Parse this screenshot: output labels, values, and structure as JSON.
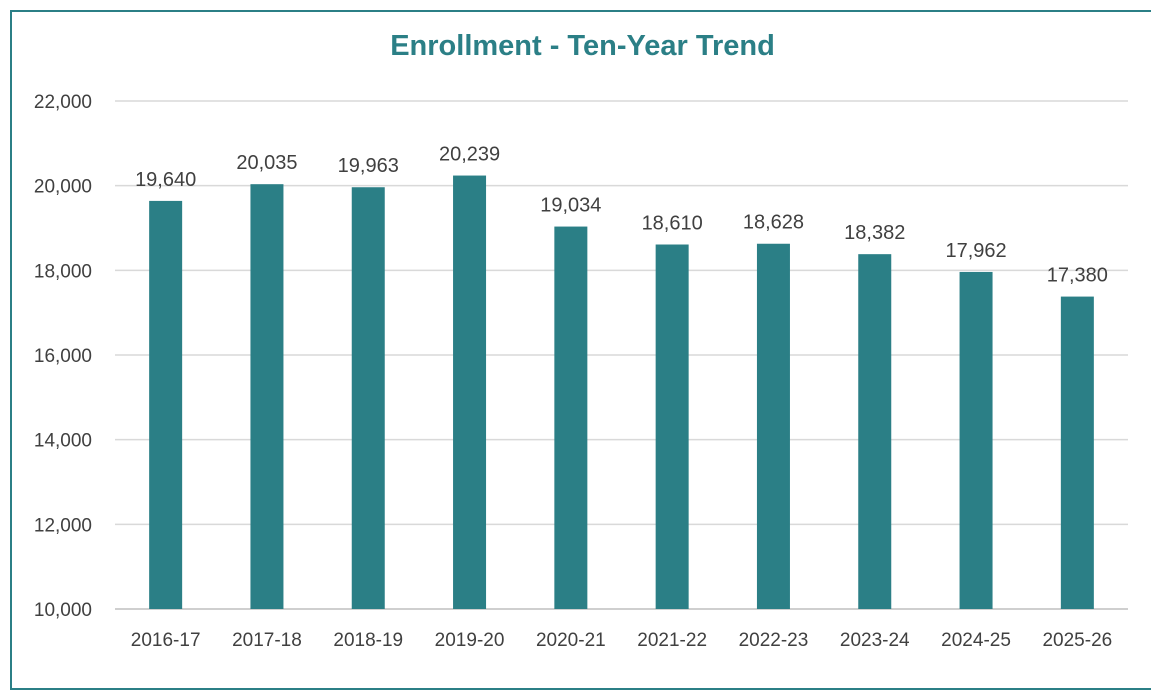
{
  "chart_data": {
    "type": "bar",
    "title": "Enrollment - Ten-Year Trend",
    "xlabel": "",
    "ylabel": "",
    "categories": [
      "2016-17",
      "2017-18",
      "2018-19",
      "2019-20",
      "2020-21",
      "2021-22",
      "2022-23",
      "2023-24",
      "2024-25",
      "2025-26"
    ],
    "values": [
      19640,
      20035,
      19963,
      20239,
      19034,
      18610,
      18628,
      18382,
      17962,
      17380
    ],
    "value_labels": [
      "19,640",
      "20,035",
      "19,963",
      "20,239",
      "19,034",
      "18,610",
      "18,628",
      "18,382",
      "17,962",
      "17,380"
    ],
    "ylim": [
      10000,
      22000
    ],
    "yticks": [
      10000,
      12000,
      14000,
      16000,
      18000,
      20000,
      22000
    ],
    "ytick_labels": [
      "10,000",
      "12,000",
      "14,000",
      "16,000",
      "18,000",
      "20,000",
      "22,000"
    ],
    "grid": true,
    "legend": "none",
    "colors": {
      "bar": "#2b7f86",
      "title": "#2b7f86",
      "grid": "#d9d9d9",
      "border": "#2b7f86"
    }
  }
}
